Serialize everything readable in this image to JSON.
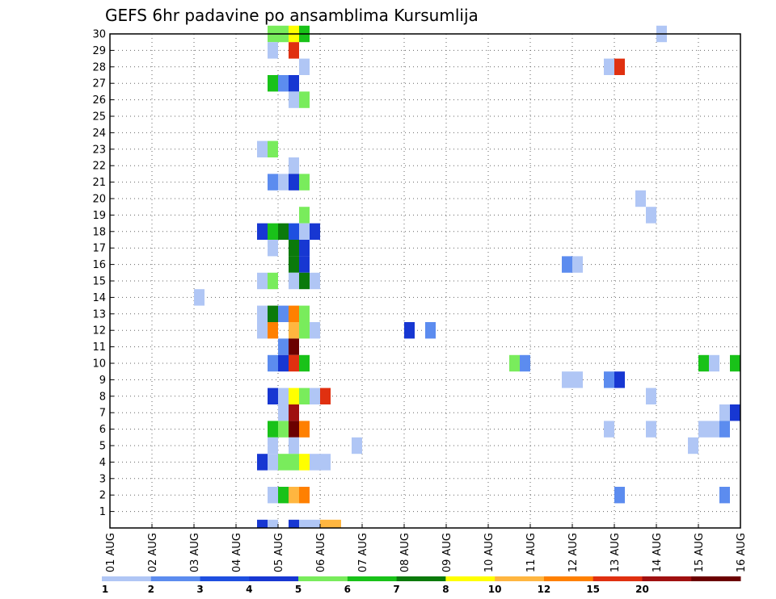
{
  "chart_data": {
    "type": "heatmap",
    "title": "GEFS 6hr padavine po ansamblima Kursumlija",
    "xlabel": "",
    "ylabel": "",
    "x_tick_labels": [
      "01 AUG",
      "02 AUG",
      "03 AUG",
      "04 AUG",
      "05 AUG",
      "06 AUG",
      "07 AUG",
      "08 AUG",
      "09 AUG",
      "10 AUG",
      "11 AUG",
      "12 AUG",
      "13 AUG",
      "14 AUG",
      "15 AUG",
      "16 AUG"
    ],
    "y_tick_labels": [
      "1",
      "2",
      "3",
      "4",
      "5",
      "6",
      "7",
      "8",
      "9",
      "10",
      "11",
      "12",
      "13",
      "14",
      "15",
      "16",
      "17",
      "18",
      "19",
      "20",
      "21",
      "22",
      "23",
      "24",
      "25",
      "26",
      "27",
      "28",
      "29",
      "30"
    ],
    "time_step_hours": 6,
    "xlim_days": [
      0,
      15
    ],
    "ylim": [
      0,
      30
    ],
    "grid": true,
    "colorbar": {
      "labels": [
        "1",
        "2",
        "3",
        "4",
        "5",
        "6",
        "7",
        "8",
        "10",
        "12",
        "15",
        "20"
      ],
      "colors": [
        "#b0c6f5",
        "#5c8cef",
        "#1e4fe0",
        "#1737d2",
        "#79ec5c",
        "#19c219",
        "#0b7a0b",
        "#ffff00",
        "#ffb640",
        "#ff8000",
        "#e03010",
        "#a01010",
        "#6b0000"
      ]
    },
    "cells": [
      {
        "member": 30,
        "day": 3,
        "hour": 18,
        "bin": 4
      },
      {
        "member": 30,
        "day": 4,
        "hour": 0,
        "bin": 4
      },
      {
        "member": 30,
        "day": 4,
        "hour": 6,
        "bin": 7
      },
      {
        "member": 30,
        "day": 4,
        "hour": 12,
        "bin": 5
      },
      {
        "member": 30,
        "day": 13,
        "hour": 0,
        "bin": 0
      },
      {
        "member": 29,
        "day": 3,
        "hour": 18,
        "bin": 0
      },
      {
        "member": 29,
        "day": 4,
        "hour": 6,
        "bin": 10
      },
      {
        "member": 28,
        "day": 4,
        "hour": 12,
        "bin": 0
      },
      {
        "member": 28,
        "day": 11,
        "hour": 18,
        "bin": 0
      },
      {
        "member": 28,
        "day": 12,
        "hour": 0,
        "bin": 10
      },
      {
        "member": 27,
        "day": 3,
        "hour": 18,
        "bin": 5
      },
      {
        "member": 27,
        "day": 4,
        "hour": 0,
        "bin": 1
      },
      {
        "member": 27,
        "day": 4,
        "hour": 6,
        "bin": 3
      },
      {
        "member": 26,
        "day": 4,
        "hour": 6,
        "bin": 0
      },
      {
        "member": 26,
        "day": 4,
        "hour": 12,
        "bin": 4
      },
      {
        "member": 23,
        "day": 3,
        "hour": 12,
        "bin": 0
      },
      {
        "member": 23,
        "day": 3,
        "hour": 18,
        "bin": 4
      },
      {
        "member": 22,
        "day": 4,
        "hour": 6,
        "bin": 0
      },
      {
        "member": 21,
        "day": 3,
        "hour": 18,
        "bin": 1
      },
      {
        "member": 21,
        "day": 4,
        "hour": 0,
        "bin": 0
      },
      {
        "member": 21,
        "day": 4,
        "hour": 6,
        "bin": 3
      },
      {
        "member": 21,
        "day": 4,
        "hour": 12,
        "bin": 4
      },
      {
        "member": 20,
        "day": 12,
        "hour": 12,
        "bin": 0
      },
      {
        "member": 19,
        "day": 4,
        "hour": 12,
        "bin": 4
      },
      {
        "member": 19,
        "day": 12,
        "hour": 18,
        "bin": 0
      },
      {
        "member": 18,
        "day": 3,
        "hour": 12,
        "bin": 3
      },
      {
        "member": 18,
        "day": 3,
        "hour": 18,
        "bin": 5
      },
      {
        "member": 18,
        "day": 4,
        "hour": 0,
        "bin": 6
      },
      {
        "member": 18,
        "day": 4,
        "hour": 6,
        "bin": 2
      },
      {
        "member": 18,
        "day": 4,
        "hour": 12,
        "bin": 0
      },
      {
        "member": 18,
        "day": 4,
        "hour": 18,
        "bin": 3
      },
      {
        "member": 17,
        "day": 3,
        "hour": 18,
        "bin": 0
      },
      {
        "member": 17,
        "day": 4,
        "hour": 6,
        "bin": 6
      },
      {
        "member": 17,
        "day": 4,
        "hour": 12,
        "bin": 3
      },
      {
        "member": 16,
        "day": 4,
        "hour": 6,
        "bin": 6
      },
      {
        "member": 16,
        "day": 4,
        "hour": 12,
        "bin": 3
      },
      {
        "member": 16,
        "day": 10,
        "hour": 18,
        "bin": 1
      },
      {
        "member": 16,
        "day": 11,
        "hour": 0,
        "bin": 0
      },
      {
        "member": 15,
        "day": 3,
        "hour": 12,
        "bin": 0
      },
      {
        "member": 15,
        "day": 3,
        "hour": 18,
        "bin": 4
      },
      {
        "member": 15,
        "day": 4,
        "hour": 6,
        "bin": 0
      },
      {
        "member": 15,
        "day": 4,
        "hour": 12,
        "bin": 6
      },
      {
        "member": 15,
        "day": 4,
        "hour": 18,
        "bin": 0
      },
      {
        "member": 14,
        "day": 2,
        "hour": 0,
        "bin": 0
      },
      {
        "member": 13,
        "day": 3,
        "hour": 12,
        "bin": 0
      },
      {
        "member": 13,
        "day": 3,
        "hour": 18,
        "bin": 6
      },
      {
        "member": 13,
        "day": 4,
        "hour": 0,
        "bin": 1
      },
      {
        "member": 13,
        "day": 4,
        "hour": 6,
        "bin": 9
      },
      {
        "member": 13,
        "day": 4,
        "hour": 12,
        "bin": 4
      },
      {
        "member": 12,
        "day": 3,
        "hour": 12,
        "bin": 0
      },
      {
        "member": 12,
        "day": 3,
        "hour": 18,
        "bin": 9
      },
      {
        "member": 12,
        "day": 4,
        "hour": 6,
        "bin": 8
      },
      {
        "member": 12,
        "day": 4,
        "hour": 12,
        "bin": 4
      },
      {
        "member": 12,
        "day": 4,
        "hour": 18,
        "bin": 0
      },
      {
        "member": 12,
        "day": 7,
        "hour": 0,
        "bin": 3
      },
      {
        "member": 12,
        "day": 7,
        "hour": 12,
        "bin": 1
      },
      {
        "member": 11,
        "day": 4,
        "hour": 0,
        "bin": 1
      },
      {
        "member": 11,
        "day": 4,
        "hour": 6,
        "bin": 12
      },
      {
        "member": 10,
        "day": 3,
        "hour": 18,
        "bin": 1
      },
      {
        "member": 10,
        "day": 4,
        "hour": 0,
        "bin": 3
      },
      {
        "member": 10,
        "day": 4,
        "hour": 6,
        "bin": 10
      },
      {
        "member": 10,
        "day": 4,
        "hour": 12,
        "bin": 5
      },
      {
        "member": 10,
        "day": 9,
        "hour": 12,
        "bin": 4
      },
      {
        "member": 10,
        "day": 9,
        "hour": 18,
        "bin": 1
      },
      {
        "member": 10,
        "day": 14,
        "hour": 0,
        "bin": 5
      },
      {
        "member": 10,
        "day": 14,
        "hour": 6,
        "bin": 0
      },
      {
        "member": 10,
        "day": 14,
        "hour": 18,
        "bin": 5
      },
      {
        "member": 9,
        "day": 10,
        "hour": 18,
        "bin": 0
      },
      {
        "member": 9,
        "day": 11,
        "hour": 0,
        "bin": 0
      },
      {
        "member": 9,
        "day": 11,
        "hour": 18,
        "bin": 1
      },
      {
        "member": 9,
        "day": 12,
        "hour": 0,
        "bin": 3
      },
      {
        "member": 8,
        "day": 3,
        "hour": 18,
        "bin": 3
      },
      {
        "member": 8,
        "day": 4,
        "hour": 0,
        "bin": 0
      },
      {
        "member": 8,
        "day": 4,
        "hour": 6,
        "bin": 7
      },
      {
        "member": 8,
        "day": 4,
        "hour": 12,
        "bin": 4
      },
      {
        "member": 8,
        "day": 4,
        "hour": 18,
        "bin": 0
      },
      {
        "member": 8,
        "day": 5,
        "hour": 0,
        "bin": 10
      },
      {
        "member": 8,
        "day": 12,
        "hour": 18,
        "bin": 0
      },
      {
        "member": 7,
        "day": 4,
        "hour": 0,
        "bin": 0
      },
      {
        "member": 7,
        "day": 4,
        "hour": 6,
        "bin": 11
      },
      {
        "member": 7,
        "day": 14,
        "hour": 12,
        "bin": 0
      },
      {
        "member": 7,
        "day": 14,
        "hour": 18,
        "bin": 3
      },
      {
        "member": 6,
        "day": 3,
        "hour": 18,
        "bin": 5
      },
      {
        "member": 6,
        "day": 4,
        "hour": 0,
        "bin": 4
      },
      {
        "member": 6,
        "day": 4,
        "hour": 6,
        "bin": 12
      },
      {
        "member": 6,
        "day": 4,
        "hour": 12,
        "bin": 9
      },
      {
        "member": 6,
        "day": 11,
        "hour": 18,
        "bin": 0
      },
      {
        "member": 6,
        "day": 12,
        "hour": 18,
        "bin": 0
      },
      {
        "member": 6,
        "day": 14,
        "hour": 0,
        "bin": 0
      },
      {
        "member": 6,
        "day": 14,
        "hour": 6,
        "bin": 0
      },
      {
        "member": 6,
        "day": 14,
        "hour": 12,
        "bin": 1
      },
      {
        "member": 5,
        "day": 3,
        "hour": 18,
        "bin": 0
      },
      {
        "member": 5,
        "day": 4,
        "hour": 6,
        "bin": 0
      },
      {
        "member": 5,
        "day": 5,
        "hour": 18,
        "bin": 0
      },
      {
        "member": 5,
        "day": 13,
        "hour": 18,
        "bin": 0
      },
      {
        "member": 4,
        "day": 3,
        "hour": 12,
        "bin": 3
      },
      {
        "member": 4,
        "day": 3,
        "hour": 18,
        "bin": 0
      },
      {
        "member": 4,
        "day": 4,
        "hour": 0,
        "bin": 4
      },
      {
        "member": 4,
        "day": 4,
        "hour": 6,
        "bin": 4
      },
      {
        "member": 4,
        "day": 4,
        "hour": 12,
        "bin": 7
      },
      {
        "member": 4,
        "day": 4,
        "hour": 18,
        "bin": 0
      },
      {
        "member": 4,
        "day": 5,
        "hour": 0,
        "bin": 0
      },
      {
        "member": 2,
        "day": 3,
        "hour": 18,
        "bin": 0
      },
      {
        "member": 2,
        "day": 4,
        "hour": 0,
        "bin": 5
      },
      {
        "member": 2,
        "day": 4,
        "hour": 6,
        "bin": 8
      },
      {
        "member": 2,
        "day": 4,
        "hour": 12,
        "bin": 9
      },
      {
        "member": 2,
        "day": 12,
        "hour": 0,
        "bin": 1
      },
      {
        "member": 2,
        "day": 14,
        "hour": 12,
        "bin": 1
      },
      {
        "member": 0,
        "day": 3,
        "hour": 12,
        "bin": 3
      },
      {
        "member": 0,
        "day": 3,
        "hour": 18,
        "bin": 0
      },
      {
        "member": 0,
        "day": 4,
        "hour": 6,
        "bin": 3
      },
      {
        "member": 0,
        "day": 4,
        "hour": 12,
        "bin": 0
      },
      {
        "member": 0,
        "day": 4,
        "hour": 18,
        "bin": 0
      },
      {
        "member": 0,
        "day": 5,
        "hour": 0,
        "bin": 8
      },
      {
        "member": 0,
        "day": 5,
        "hour": 6,
        "bin": 8
      }
    ]
  }
}
